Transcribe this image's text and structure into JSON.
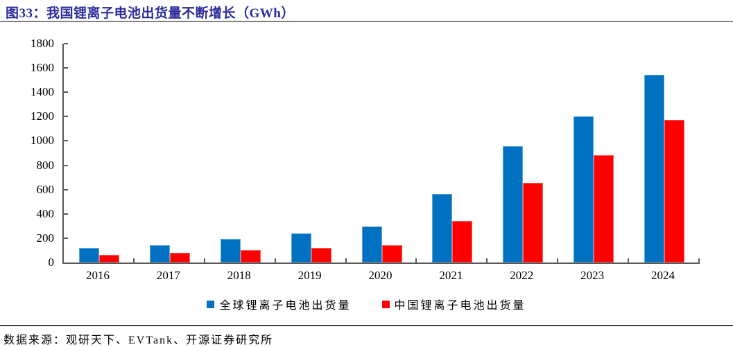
{
  "title": "图33：我国锂离子电池出货量不断增长（GWh）",
  "source": "数据来源：观研天下、EVTank、开源证券研究所",
  "colors": {
    "title_navy": "#2B2B9B",
    "axis_gray": "#595959",
    "top_rule_gray": "#7F7F7F",
    "bottom_rule_dark": "#404040",
    "series_blue": "#0070C0",
    "series_red": "#FF0000"
  },
  "chart_data": {
    "type": "bar",
    "title": "图33：我国锂离子电池出货量不断增长（GWh）",
    "categories": [
      "2016",
      "2017",
      "2018",
      "2019",
      "2020",
      "2021",
      "2022",
      "2023",
      "2024"
    ],
    "series": [
      {
        "key": "global",
        "name": "全球锂离子电池出货量",
        "color": "#0070C0",
        "values": [
          120,
          145,
          195,
          240,
          295,
          565,
          955,
          1200,
          1545
        ]
      },
      {
        "key": "china",
        "name": "中国锂离子电池出货量",
        "color": "#FF0000",
        "values": [
          64,
          80,
          100,
          117,
          140,
          340,
          655,
          885,
          1175
        ]
      }
    ],
    "xlabel": "",
    "ylabel": "",
    "ylim": [
      0,
      1800
    ],
    "ytick_step": 200,
    "grid": false,
    "tick_style": "inside",
    "legend_position": "bottom"
  }
}
